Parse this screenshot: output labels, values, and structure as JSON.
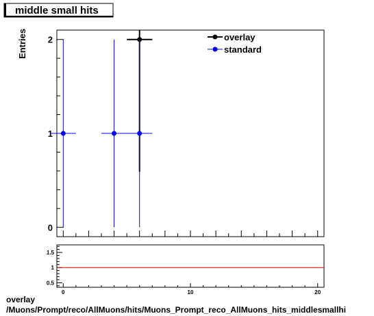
{
  "title": "middle small hits",
  "ylabel": "Entries",
  "footer": {
    "line1": "overlay",
    "line2": "/Muons/Prompt/reco/AllMuons/hits/Muons_Prompt_reco_AllMuons_hits_middlesmallhi"
  },
  "chart_data": [
    {
      "type": "scatter",
      "title": "middle small hits",
      "ylabel": "Entries",
      "xlabel": "",
      "xlim": [
        -0.5,
        20.5
      ],
      "ylim": [
        -0.1,
        2.1
      ],
      "yticks": [
        0,
        1,
        2
      ],
      "xticks_labeled": [],
      "legend": {
        "placement": "top-right",
        "entries": [
          "overlay",
          "standard"
        ]
      },
      "series": [
        {
          "name": "overlay",
          "color": "#000000",
          "points": [
            {
              "x": 6,
              "y": 2,
              "yerr": 1.41,
              "xerr": 1
            }
          ]
        },
        {
          "name": "standard",
          "color": "#0000ff",
          "points": [
            {
              "x": 0,
              "y": 1,
              "yerr": 1,
              "xerr": 1
            },
            {
              "x": 4,
              "y": 1,
              "yerr": 1,
              "xerr": 1
            },
            {
              "x": 6,
              "y": 1,
              "yerr": 1,
              "xerr": 1
            }
          ]
        }
      ]
    },
    {
      "type": "line",
      "xlim": [
        -0.5,
        20.5
      ],
      "ylim": [
        0.35,
        1.75
      ],
      "yticks": [
        0.5,
        1,
        1.5
      ],
      "yticklabels": [
        "0.5",
        "1",
        "1.5"
      ],
      "xticks": [
        0,
        10,
        20
      ],
      "xticklabels": [
        "0",
        "10",
        "20"
      ],
      "series": [
        {
          "name": "",
          "color": "#cc0000",
          "x": [
            -0.5,
            20.5
          ],
          "values": [
            1,
            1
          ]
        }
      ]
    }
  ]
}
